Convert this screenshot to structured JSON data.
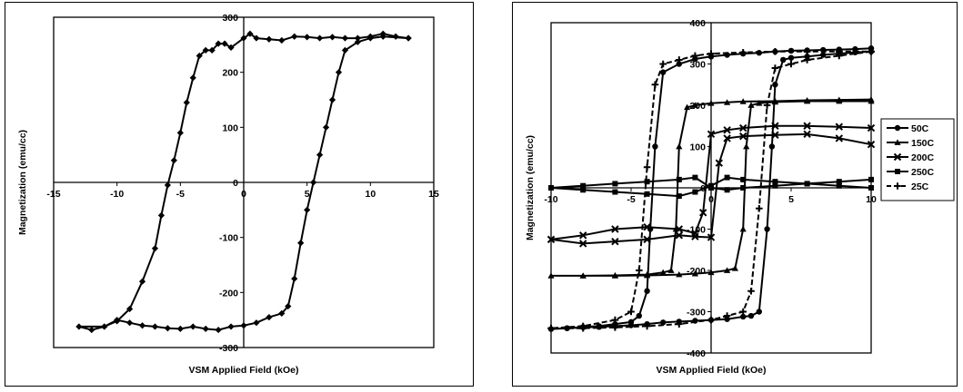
{
  "chart_data": [
    {
      "type": "line",
      "xlabel": "VSM Applied Field (kOe)",
      "ylabel": "Magnetization (emu/cc)",
      "xlim": [
        -15,
        15
      ],
      "ylim": [
        -300,
        300
      ],
      "xticks": [
        -15,
        -10,
        -5,
        0,
        5,
        10,
        15
      ],
      "yticks": [
        -300,
        -200,
        -100,
        0,
        100,
        200,
        300
      ],
      "xtick_labels": [
        "-15",
        "-10",
        "-5",
        "0",
        "5",
        "10",
        "15"
      ],
      "ytick_labels": [
        "-300",
        "-200",
        "-100",
        "0",
        "100",
        "200",
        "300"
      ],
      "grid": false,
      "series": [
        {
          "marker": "diamond",
          "color": "#000000",
          "x": [
            13,
            11,
            10,
            9,
            8,
            7.5,
            7,
            6.5,
            6,
            5.5,
            5,
            4.5,
            4,
            3.5,
            3,
            2,
            1,
            0,
            -1,
            -2,
            -3,
            -4,
            -5,
            -6,
            -7,
            -8,
            -9,
            -10,
            -11,
            -12,
            -13,
            -11,
            -10,
            -9,
            -8,
            -7,
            -6.5,
            -6,
            -5.5,
            -5,
            -4.5,
            -4,
            -3.5,
            -3,
            -2.5,
            -2,
            -1.5,
            -1,
            0,
            0.5,
            1,
            2,
            3,
            4,
            5,
            6,
            7,
            8,
            9,
            10,
            11,
            12,
            13
          ],
          "y": [
            262,
            265,
            262,
            255,
            240,
            200,
            150,
            100,
            50,
            0,
            -50,
            -110,
            -175,
            -225,
            -238,
            -245,
            -255,
            -260,
            -262,
            -268,
            -266,
            -262,
            -266,
            -265,
            -262,
            -260,
            -255,
            -250,
            -262,
            -268,
            -262,
            -262,
            -252,
            -230,
            -180,
            -120,
            -60,
            -5,
            40,
            90,
            145,
            190,
            230,
            240,
            240,
            252,
            252,
            245,
            262,
            270,
            262,
            260,
            258,
            265,
            264,
            262,
            264,
            262,
            262,
            265,
            270,
            265,
            262
          ]
        }
      ]
    },
    {
      "type": "line",
      "xlabel": "VSM Applied Field (kOe)",
      "ylabel": "Magnetization (emu/cc)",
      "xlim": [
        -10,
        10
      ],
      "ylim": [
        -400,
        400
      ],
      "xticks": [
        -10,
        -5,
        0,
        5,
        10
      ],
      "yticks": [
        -400,
        -300,
        -200,
        -100,
        0,
        100,
        200,
        300,
        400
      ],
      "xtick_labels": [
        "-10",
        "-5",
        "0",
        "5",
        "10"
      ],
      "ytick_labels": [
        "-400",
        "-300",
        "-200",
        "-100",
        "0",
        "100",
        "200",
        "300",
        "400"
      ],
      "grid": false,
      "legend_position": "right",
      "series": [
        {
          "name": "50C",
          "marker": "circle",
          "dash": "solid",
          "color": "#000000",
          "x": [
            10,
            9,
            8,
            7,
            6,
            5,
            4.5,
            4,
            3.8,
            3.5,
            3,
            2.5,
            2,
            1,
            0,
            -1,
            -2,
            -3,
            -4,
            -5,
            -6,
            -7,
            -8,
            -9,
            -10,
            -9,
            -8,
            -7,
            -6,
            -5,
            -4.5,
            -4,
            -3.8,
            -3.5,
            -3,
            -2,
            -1,
            0,
            1,
            2,
            3,
            4,
            5,
            6,
            7,
            8,
            9,
            10
          ],
          "y": [
            330,
            328,
            325,
            322,
            318,
            315,
            310,
            250,
            100,
            -100,
            -300,
            -310,
            -312,
            -318,
            -320,
            -322,
            -324,
            -326,
            -330,
            -333,
            -335,
            -337,
            -338,
            -340,
            -342,
            -340,
            -337,
            -335,
            -330,
            -325,
            -310,
            -250,
            -100,
            100,
            280,
            300,
            312,
            318,
            322,
            325,
            327,
            330,
            332,
            333,
            334,
            335,
            336,
            338
          ]
        },
        {
          "name": "150C",
          "marker": "triangle",
          "dash": "solid",
          "color": "#000000",
          "x": [
            10,
            8,
            6,
            4,
            3,
            2.5,
            2.2,
            2,
            1.5,
            1,
            0,
            -1,
            -2,
            -4,
            -6,
            -8,
            -10,
            -8,
            -6,
            -4,
            -3,
            -2.5,
            -2.2,
            -2,
            -1.5,
            -1,
            0,
            1,
            2,
            4,
            6,
            8,
            10
          ],
          "y": [
            210,
            210,
            210,
            208,
            205,
            200,
            100,
            -100,
            -195,
            -200,
            -205,
            -208,
            -210,
            -212,
            -213,
            -213,
            -213,
            -213,
            -212,
            -210,
            -205,
            -200,
            -100,
            100,
            195,
            200,
            205,
            207,
            209,
            210,
            212,
            213,
            214
          ]
        },
        {
          "name": "200C",
          "marker": "x",
          "dash": "solid",
          "color": "#000000",
          "x": [
            10,
            8,
            6,
            4,
            2,
            1,
            0.5,
            0,
            -1,
            -2,
            -4,
            -6,
            -8,
            -10,
            -8,
            -6,
            -4,
            -2,
            -1,
            -0.5,
            0,
            1,
            2,
            4,
            6,
            8,
            10
          ],
          "y": [
            105,
            120,
            130,
            128,
            125,
            120,
            60,
            -120,
            -118,
            -115,
            -125,
            -130,
            -135,
            -125,
            -115,
            -100,
            -95,
            -100,
            -110,
            -60,
            130,
            140,
            145,
            150,
            150,
            148,
            145
          ]
        },
        {
          "name": "250C",
          "marker": "square",
          "dash": "solid",
          "color": "#000000",
          "x": [
            10,
            8,
            6,
            4,
            2,
            1,
            0,
            -1,
            -2,
            -4,
            -6,
            -8,
            -10,
            -8,
            -6,
            -4,
            -2,
            -1,
            0,
            1,
            2,
            4,
            6,
            8,
            10
          ],
          "y": [
            0,
            5,
            10,
            15,
            20,
            25,
            5,
            -10,
            -20,
            -15,
            -10,
            -5,
            0,
            5,
            10,
            15,
            20,
            25,
            0,
            -5,
            0,
            5,
            10,
            15,
            20
          ]
        },
        {
          "name": "25C",
          "marker": "plus",
          "dash": "dash",
          "color": "#000000",
          "x": [
            10,
            8,
            6,
            5,
            4,
            3.5,
            3,
            2.5,
            2,
            1,
            0,
            -2,
            -4,
            -6,
            -8,
            -10,
            -8,
            -6,
            -5,
            -4.5,
            -4,
            -3.5,
            -3,
            -2,
            -1,
            0,
            2,
            4,
            6,
            8,
            10
          ],
          "y": [
            330,
            320,
            310,
            300,
            290,
            200,
            -50,
            -250,
            -300,
            -310,
            -320,
            -330,
            -335,
            -338,
            -340,
            -340,
            -335,
            -320,
            -300,
            -200,
            50,
            250,
            300,
            310,
            320,
            325,
            328,
            330,
            330,
            330,
            330
          ]
        }
      ]
    }
  ]
}
